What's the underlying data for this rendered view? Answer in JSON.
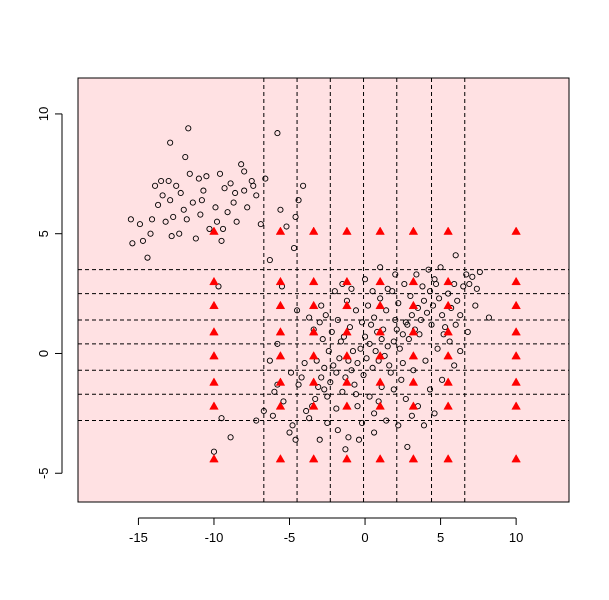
{
  "chart_data": {
    "type": "scatter",
    "title": "",
    "xlabel": "",
    "ylabel": "",
    "xlim": [
      -19,
      13.5
    ],
    "ylim": [
      -6.2,
      11.5
    ],
    "x_ticks": [
      -15,
      -10,
      -5,
      0,
      5,
      10
    ],
    "x_tick_labels": [
      "-15",
      "-10",
      "-5",
      "0",
      "5",
      "10"
    ],
    "y_ticks": [
      -5,
      0,
      5,
      10
    ],
    "y_tick_labels": [
      "-5",
      "0",
      "5",
      "10"
    ],
    "grid": false,
    "legend": "none",
    "background_color": "#ffe1e3",
    "vertical_cut_lines_x": [
      -6.7,
      -4.5,
      -2.3,
      -0.1,
      2.1,
      4.4,
      6.6
    ],
    "horizontal_cut_lines_y": [
      -2.8,
      -1.7,
      -0.7,
      0.4,
      1.4,
      2.5,
      3.5
    ],
    "series": [
      {
        "marker": "open-circle",
        "color": "#000000",
        "points": [
          [
            -15.5,
            5.6
          ],
          [
            -15.4,
            4.6
          ],
          [
            -14.9,
            5.4
          ],
          [
            -14.7,
            4.7
          ],
          [
            -14.4,
            4.0
          ],
          [
            -14.2,
            5.0
          ],
          [
            -14.1,
            5.6
          ],
          [
            -13.9,
            7.0
          ],
          [
            -13.7,
            6.2
          ],
          [
            -13.5,
            7.2
          ],
          [
            -13.4,
            6.6
          ],
          [
            -13.2,
            5.5
          ],
          [
            -13.0,
            7.2
          ],
          [
            -12.9,
            6.4
          ],
          [
            -12.8,
            4.9
          ],
          [
            -12.7,
            5.7
          ],
          [
            -12.5,
            7.0
          ],
          [
            -12.3,
            5.0
          ],
          [
            -12.2,
            6.7
          ],
          [
            -12.0,
            6.0
          ],
          [
            -11.9,
            8.2
          ],
          [
            -11.8,
            5.6
          ],
          [
            -11.6,
            7.5
          ],
          [
            -11.4,
            6.3
          ],
          [
            -11.2,
            4.8
          ],
          [
            -10.9,
            5.8
          ],
          [
            -10.7,
            6.8
          ],
          [
            -10.5,
            7.4
          ],
          [
            -10.3,
            5.2
          ],
          [
            -9.9,
            6.1
          ],
          [
            -9.8,
            5.5
          ],
          [
            -9.6,
            7.5
          ],
          [
            -9.5,
            4.7
          ],
          [
            -9.3,
            6.9
          ],
          [
            -9.1,
            5.9
          ],
          [
            -8.9,
            7.1
          ],
          [
            -8.7,
            6.3
          ],
          [
            -8.5,
            5.5
          ],
          [
            -8.2,
            7.9
          ],
          [
            -8.0,
            6.8
          ],
          [
            -7.8,
            6.1
          ],
          [
            -7.5,
            7.2
          ],
          [
            -7.2,
            6.6
          ],
          [
            -12.9,
            8.8
          ],
          [
            -11.7,
            9.4
          ],
          [
            -11.0,
            7.3
          ],
          [
            -10.8,
            6.4
          ],
          [
            -9.4,
            5.2
          ],
          [
            -8.6,
            6.7
          ],
          [
            -8.0,
            7.6
          ],
          [
            -7.4,
            7.0
          ],
          [
            -6.9,
            5.4
          ],
          [
            -6.6,
            7.3
          ],
          [
            -6.3,
            3.9
          ],
          [
            -5.8,
            9.2
          ],
          [
            -5.6,
            6.0
          ],
          [
            -5.2,
            5.3
          ],
          [
            -4.7,
            4.4
          ],
          [
            -4.6,
            5.7
          ],
          [
            -4.4,
            6.4
          ],
          [
            -4.1,
            7.0
          ],
          [
            -9.7,
            2.8
          ],
          [
            -9.5,
            -2.7
          ],
          [
            -8.9,
            -3.5
          ],
          [
            -10.0,
            -4.1
          ],
          [
            -7.2,
            -2.8
          ],
          [
            -6.7,
            -2.4
          ],
          [
            -6.3,
            -0.3
          ],
          [
            -6.1,
            -2.6
          ],
          [
            -5.8,
            -1.3
          ],
          [
            -5.4,
            -2.0
          ],
          [
            -5.0,
            -3.3
          ],
          [
            -4.8,
            -3.0
          ],
          [
            -4.6,
            -3.6
          ],
          [
            -5.8,
            0.4
          ],
          [
            -4.2,
            -1.0
          ],
          [
            -3.9,
            -2.4
          ],
          [
            -3.7,
            -2.7
          ],
          [
            -3.5,
            -2.2
          ],
          [
            -3.3,
            -1.9
          ],
          [
            -3.1,
            -1.4
          ],
          [
            -2.9,
            -1.0
          ],
          [
            -2.7,
            -0.6
          ],
          [
            -2.5,
            -1.8
          ],
          [
            -2.3,
            -1.2
          ],
          [
            -2.1,
            -0.5
          ],
          [
            -1.9,
            -0.8
          ],
          [
            -1.7,
            -0.2
          ],
          [
            -1.5,
            -1.6
          ],
          [
            -1.3,
            -1.0
          ],
          [
            -1.1,
            -0.3
          ],
          [
            -0.9,
            -0.7
          ],
          [
            -0.7,
            -1.3
          ],
          [
            -0.5,
            -0.4
          ],
          [
            -0.3,
            0.2
          ],
          [
            -0.1,
            -0.9
          ],
          [
            0.1,
            -0.2
          ],
          [
            0.3,
            0.4
          ],
          [
            0.5,
            -0.6
          ],
          [
            0.7,
            0.1
          ],
          [
            0.9,
            -0.3
          ],
          [
            1.1,
            0.6
          ],
          [
            1.3,
            -0.1
          ],
          [
            1.5,
            0.3
          ],
          [
            1.7,
            -0.8
          ],
          [
            1.9,
            0.5
          ],
          [
            2.1,
            1.0
          ],
          [
            2.3,
            0.2
          ],
          [
            2.5,
            0.8
          ],
          [
            2.7,
            1.3
          ],
          [
            2.9,
            0.6
          ],
          [
            3.1,
            1.6
          ],
          [
            3.3,
            1.0
          ],
          [
            3.5,
            1.9
          ],
          [
            3.7,
            1.4
          ],
          [
            3.9,
            2.2
          ],
          [
            4.1,
            1.7
          ],
          [
            4.3,
            2.6
          ],
          [
            4.5,
            2.0
          ],
          [
            4.7,
            2.9
          ],
          [
            4.9,
            2.3
          ],
          [
            5.1,
            1.6
          ],
          [
            5.3,
            1.1
          ],
          [
            5.5,
            2.5
          ],
          [
            5.7,
            1.9
          ],
          [
            5.9,
            2.9
          ],
          [
            6.1,
            2.2
          ],
          [
            6.3,
            1.6
          ],
          [
            6.5,
            2.8
          ],
          [
            6.7,
            3.3
          ],
          [
            6.9,
            2.9
          ],
          [
            7.1,
            3.2
          ],
          [
            7.4,
            2.7
          ],
          [
            7.6,
            3.4
          ],
          [
            8.2,
            1.5
          ],
          [
            6.0,
            4.1
          ],
          [
            -3.4,
            1.0
          ],
          [
            -3.0,
            1.3
          ],
          [
            -2.8,
            0.6
          ],
          [
            -2.6,
            1.6
          ],
          [
            -2.2,
            0.9
          ],
          [
            -1.8,
            1.4
          ],
          [
            -1.4,
            0.7
          ],
          [
            -1.0,
            1.1
          ],
          [
            -0.6,
            1.8
          ],
          [
            -0.2,
            1.3
          ],
          [
            0.2,
            2.0
          ],
          [
            0.6,
            1.5
          ],
          [
            1.0,
            2.3
          ],
          [
            1.4,
            1.8
          ],
          [
            1.8,
            2.6
          ],
          [
            2.2,
            2.1
          ],
          [
            2.6,
            2.9
          ],
          [
            3.0,
            2.4
          ],
          [
            3.4,
            3.3
          ],
          [
            3.8,
            2.8
          ],
          [
            4.2,
            3.5
          ],
          [
            4.6,
            3.1
          ],
          [
            5.0,
            3.6
          ],
          [
            2.0,
            3.3
          ],
          [
            1.0,
            3.6
          ],
          [
            0.0,
            3.1
          ],
          [
            -1.5,
            2.9
          ],
          [
            -2.5,
            -2.9
          ],
          [
            -1.8,
            -3.2
          ],
          [
            -1.1,
            -3.5
          ],
          [
            -0.2,
            -2.9
          ],
          [
            0.6,
            -3.3
          ],
          [
            1.4,
            -2.8
          ],
          [
            2.2,
            -3.0
          ],
          [
            3.1,
            -2.6
          ],
          [
            3.9,
            -3.0
          ],
          [
            4.6,
            -2.5
          ],
          [
            -1.3,
            -4.0
          ],
          [
            -0.4,
            -3.6
          ],
          [
            0.6,
            -2.5
          ],
          [
            2.8,
            -3.9
          ],
          [
            1.1,
            -1.4
          ],
          [
            0.3,
            -1.8
          ],
          [
            -0.5,
            -2.2
          ],
          [
            0.9,
            -2.0
          ],
          [
            1.9,
            -1.5
          ],
          [
            2.7,
            -1.9
          ],
          [
            3.5,
            -2.2
          ],
          [
            4.3,
            -1.5
          ],
          [
            5.1,
            -1.1
          ],
          [
            5.9,
            -0.5
          ],
          [
            6.3,
            0.1
          ],
          [
            5.6,
            0.5
          ],
          [
            4.8,
            0.2
          ],
          [
            4.0,
            -0.3
          ],
          [
            3.2,
            -0.7
          ],
          [
            2.4,
            -1.1
          ],
          [
            1.6,
            -0.5
          ],
          [
            0.8,
            0.9
          ],
          [
            -1.2,
            2.2
          ],
          [
            -2.0,
            2.6
          ],
          [
            -2.9,
            2.0
          ],
          [
            -3.7,
            1.5
          ],
          [
            -4.0,
            -0.4
          ],
          [
            -4.4,
            -1.3
          ],
          [
            -4.9,
            -0.8
          ],
          [
            -3.2,
            -0.3
          ],
          [
            -2.4,
            0.1
          ],
          [
            -1.6,
            0.5
          ],
          [
            -0.8,
            0.1
          ],
          [
            0.0,
            0.7
          ],
          [
            0.4,
            1.2
          ],
          [
            1.2,
            1.0
          ],
          [
            2.0,
            1.4
          ],
          [
            2.8,
            1.2
          ],
          [
            3.6,
            0.8
          ],
          [
            4.4,
            1.2
          ],
          [
            5.2,
            0.8
          ],
          [
            6.0,
            1.2
          ],
          [
            6.8,
            0.9
          ],
          [
            -5.5,
            2.8
          ],
          [
            -4.5,
            1.8
          ],
          [
            -6.0,
            -1.6
          ],
          [
            -3.0,
            -3.6
          ],
          [
            7.3,
            2.0
          ],
          [
            2.5,
            -0.4
          ],
          [
            1.5,
            2.7
          ],
          [
            0.5,
            2.6
          ],
          [
            -0.9,
            2.7
          ],
          [
            -2.7,
            -1.5
          ],
          [
            -1.9,
            -2.3
          ],
          [
            -0.6,
            -1.7
          ]
        ]
      },
      {
        "marker": "filled-triangle",
        "color": "#ff0000",
        "x_levels": [
          -10.0,
          -5.6,
          -3.4,
          -1.2,
          1.0,
          3.2,
          5.5,
          10.0
        ],
        "y_levels": [
          -4.4,
          -2.2,
          -1.2,
          -0.1,
          0.9,
          2.0,
          3.0,
          5.1
        ]
      }
    ]
  }
}
